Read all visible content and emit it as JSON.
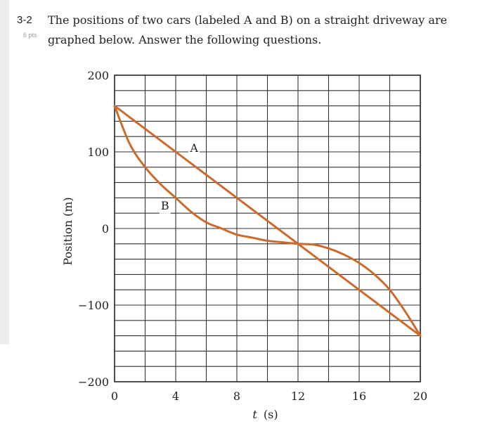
{
  "question": {
    "number": "3-2",
    "points": "6 pts",
    "text_line1": "The positions of two cars (labeled A and B) on a straight driveway are",
    "text_line2": "graphed below. Answer the following questions."
  },
  "chart_data": {
    "type": "line",
    "title": "",
    "xlabel_italic": "t",
    "xlabel_unit": "(s)",
    "ylabel": "Position (m)",
    "xlim": [
      0,
      20
    ],
    "ylim": [
      -200,
      200
    ],
    "grid": true,
    "grid_x_step": 2,
    "grid_y_step": 20,
    "x_ticks": [
      {
        "value": 0,
        "label": "0"
      },
      {
        "value": 4,
        "label": "4"
      },
      {
        "value": 8,
        "label": "8"
      },
      {
        "value": 12,
        "label": "12"
      },
      {
        "value": 16,
        "label": "16"
      },
      {
        "value": 20,
        "label": "20"
      }
    ],
    "y_ticks": [
      {
        "value": 200,
        "label": "200"
      },
      {
        "value": 100,
        "label": "100"
      },
      {
        "value": 0,
        "label": "0"
      },
      {
        "value": -100,
        "label": "−100"
      },
      {
        "value": -200,
        "label": "−200"
      }
    ],
    "line_color": "#cc6a2c",
    "series": [
      {
        "name": "A",
        "label": "A",
        "label_at": {
          "x": 5.2,
          "y": 100
        },
        "points": [
          [
            0,
            160
          ],
          [
            20,
            -140
          ]
        ]
      },
      {
        "name": "B",
        "label": "B",
        "label_at": {
          "x": 3.3,
          "y": 25
        },
        "points": [
          [
            0,
            160
          ],
          [
            1,
            110
          ],
          [
            2,
            80
          ],
          [
            3,
            58
          ],
          [
            4,
            40
          ],
          [
            5,
            22
          ],
          [
            6,
            8
          ],
          [
            7,
            0
          ],
          [
            8,
            -8
          ],
          [
            9,
            -12
          ],
          [
            10,
            -16
          ],
          [
            11,
            -18
          ],
          [
            12,
            -20
          ],
          [
            13,
            -21
          ],
          [
            14,
            -26
          ],
          [
            15,
            -34
          ],
          [
            16,
            -45
          ],
          [
            17,
            -60
          ],
          [
            18,
            -80
          ],
          [
            19,
            -108
          ],
          [
            20,
            -140
          ]
        ]
      }
    ]
  }
}
